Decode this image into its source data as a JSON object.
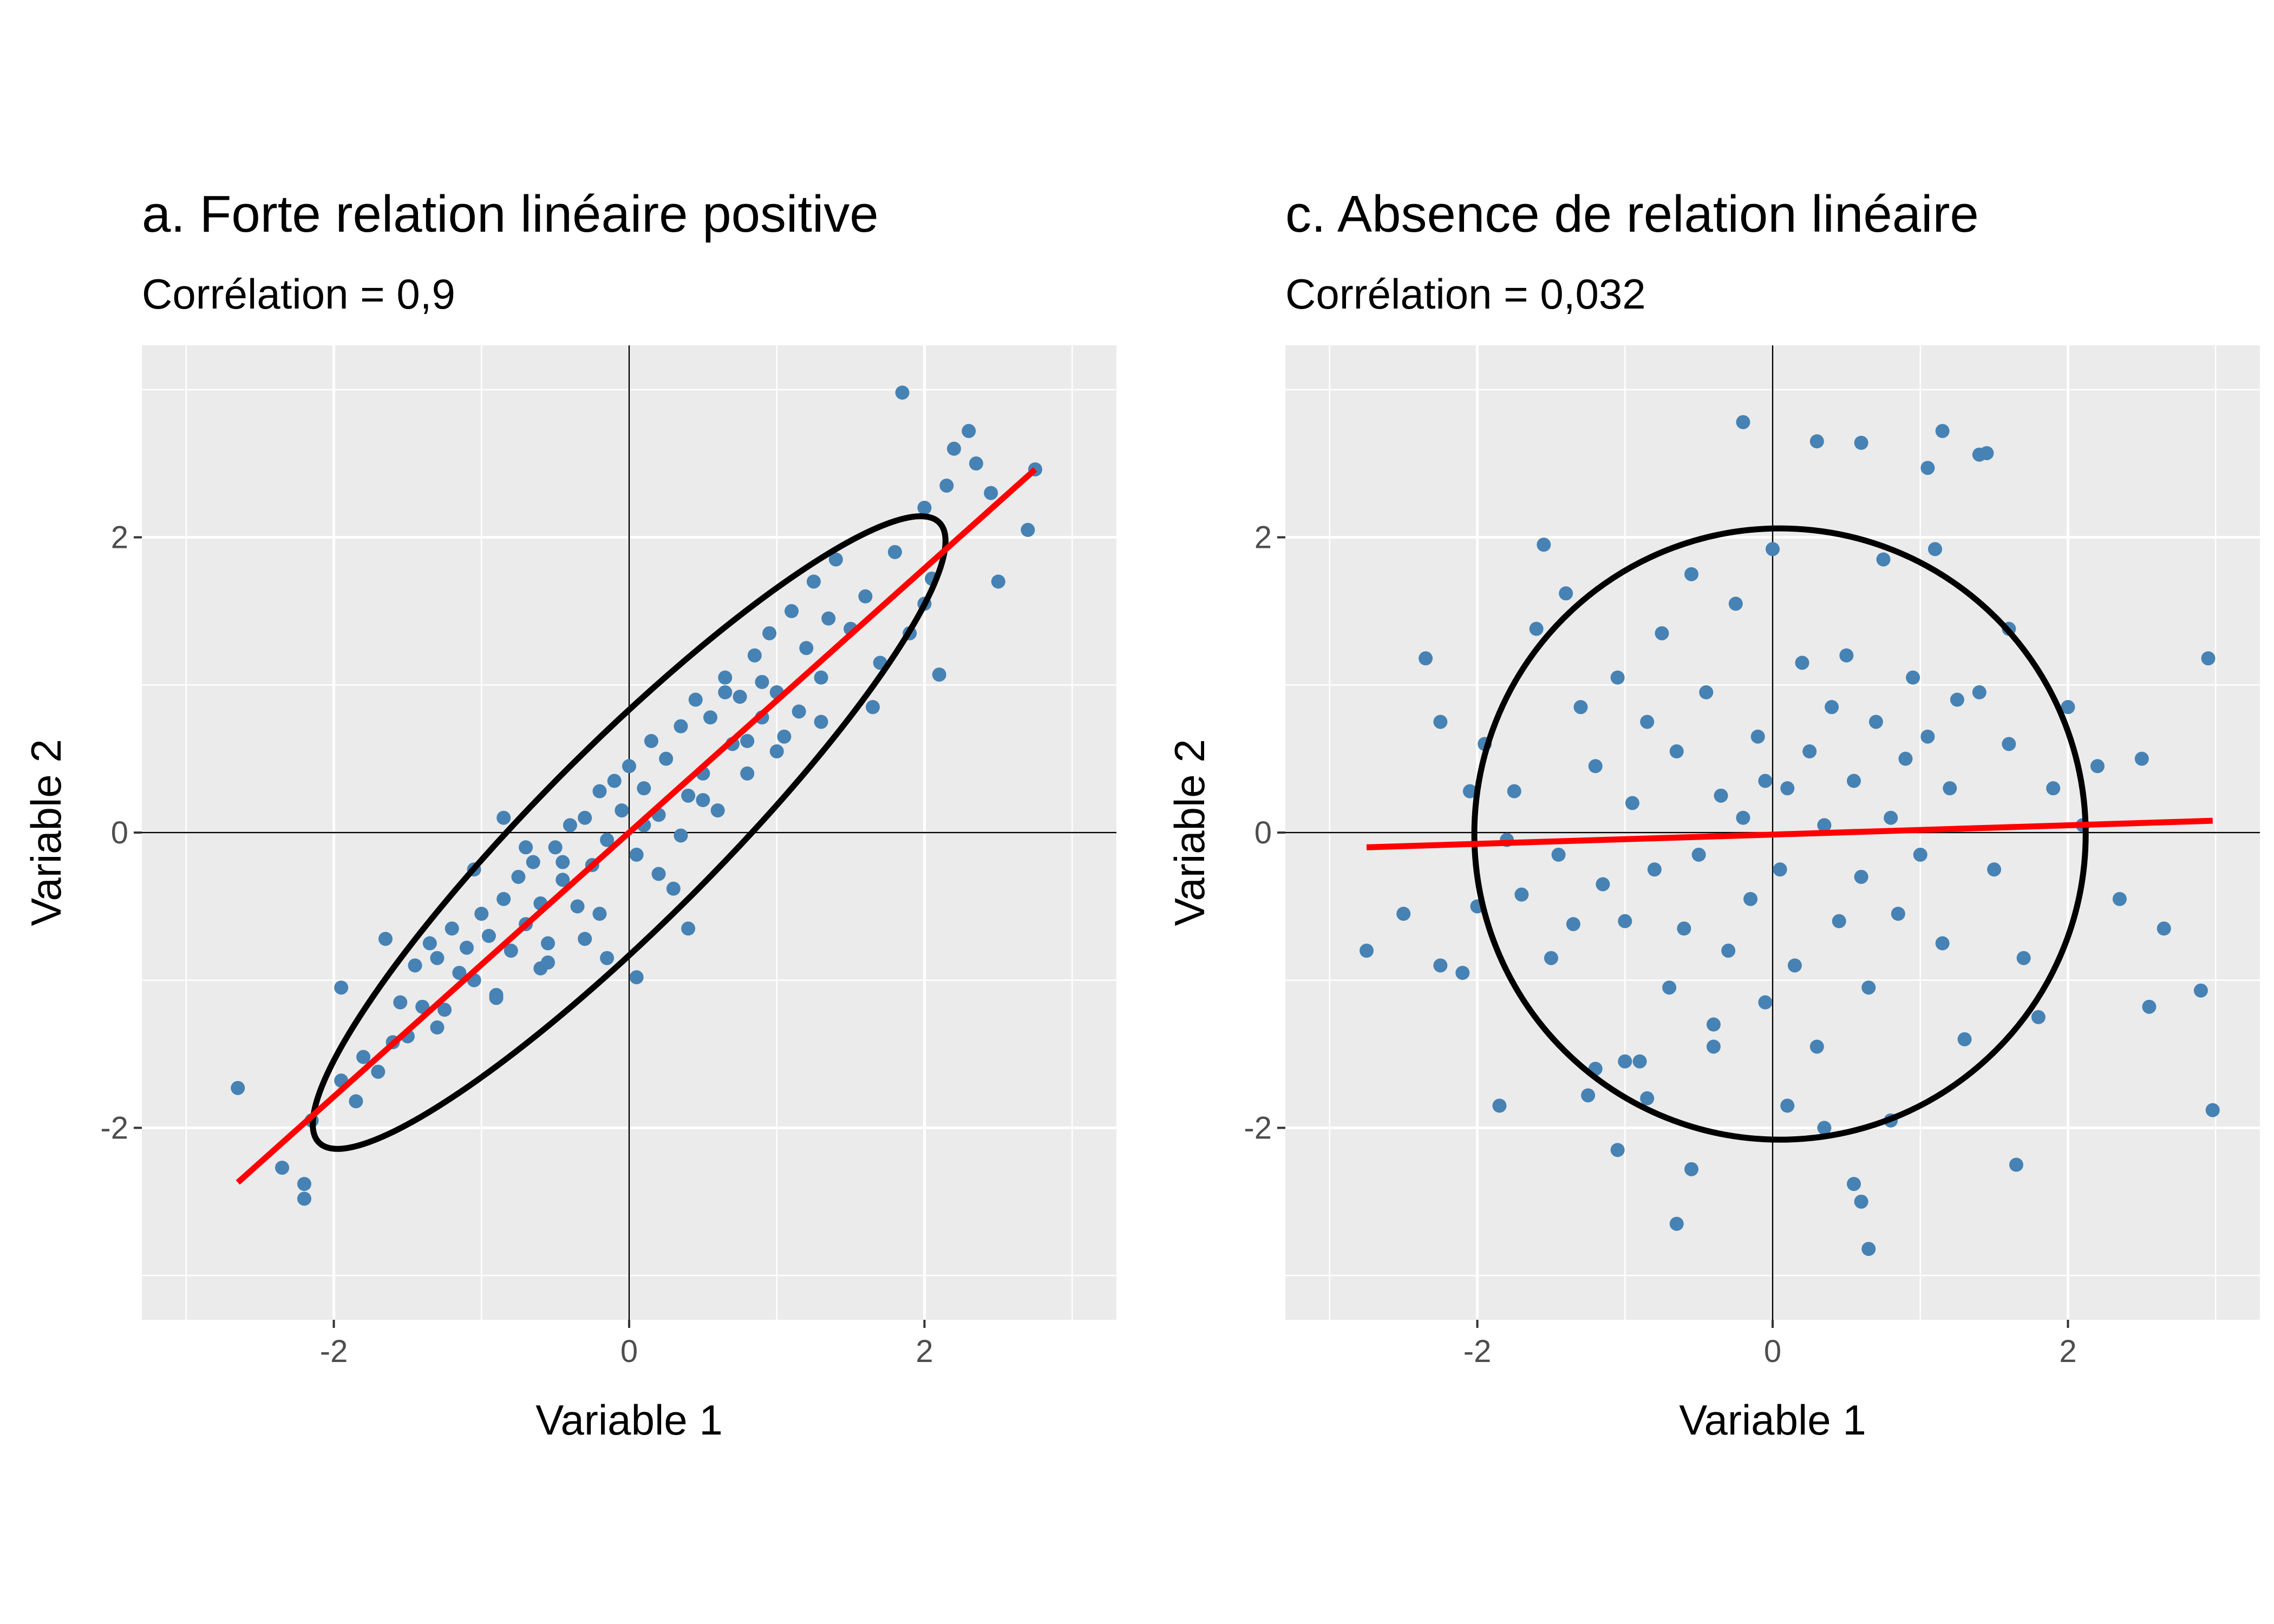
{
  "chart_data": [
    {
      "type": "scatter",
      "title": "a. Forte relation linéaire positive",
      "subtitle": "Corrélation = 0,9",
      "xlabel": "Variable 1",
      "ylabel": "Variable 2",
      "xlim": [
        -3.3,
        3.3
      ],
      "ylim": [
        -3.3,
        3.3
      ],
      "xticks": [
        -2,
        0,
        2
      ],
      "yticks": [
        -2,
        0,
        2
      ],
      "xtick_labels": [
        "-2",
        "0",
        "2"
      ],
      "ytick_labels": [
        "-2",
        "0",
        "2"
      ],
      "grid": true,
      "reference_lines": {
        "x": 0,
        "y": 0
      },
      "point_color": "#4682B4",
      "regression_line": {
        "color": "#FF0000",
        "x": [
          -2.65,
          2.75
        ],
        "y": [
          -2.37,
          2.46
        ]
      },
      "ellipse": {
        "color": "#000000",
        "center": [
          0,
          0
        ],
        "semi_major": 2.97,
        "semi_minor": 0.6,
        "angle_deg": 45
      },
      "points": {
        "x": [
          -2.65,
          -2.35,
          -2.2,
          -2.2,
          -2.15,
          -1.95,
          -1.85,
          -1.8,
          -1.7,
          -1.6,
          -1.55,
          -1.5,
          -1.45,
          -1.4,
          -1.35,
          -1.3,
          -1.25,
          -1.2,
          -1.15,
          -1.1,
          -1.05,
          -1.0,
          -0.95,
          -0.9,
          -0.85,
          -0.8,
          -0.75,
          -0.7,
          -0.65,
          -0.6,
          -0.55,
          -0.5,
          -0.45,
          -0.4,
          -0.35,
          -0.3,
          -0.25,
          -0.2,
          -0.15,
          -0.1,
          -0.05,
          0.0,
          0.05,
          0.1,
          0.15,
          0.2,
          0.25,
          0.3,
          0.35,
          0.4,
          0.45,
          0.5,
          0.55,
          0.6,
          0.65,
          0.7,
          0.75,
          0.8,
          0.85,
          0.9,
          0.95,
          1.0,
          1.05,
          1.1,
          1.15,
          1.2,
          1.25,
          1.3,
          1.35,
          1.4,
          1.5,
          1.6,
          1.7,
          1.8,
          1.85,
          1.9,
          2.0,
          2.05,
          2.1,
          2.15,
          2.2,
          2.3,
          2.35,
          2.45,
          2.5,
          2.7,
          2.75,
          -1.3,
          -0.9,
          -0.6,
          -0.2,
          0.35,
          0.8,
          -0.45,
          0.1,
          0.5,
          1.0,
          -1.05,
          -0.7,
          -0.3,
          0.2,
          0.65,
          -0.85,
          -0.15,
          0.4,
          0.9,
          1.3,
          0.05,
          -0.55,
          -1.65,
          -1.95,
          1.65,
          2.0
        ],
        "y": [
          -1.73,
          -2.27,
          -2.38,
          -2.48,
          -1.95,
          -1.68,
          -1.82,
          -1.52,
          -1.62,
          -1.42,
          -1.15,
          -1.38,
          -0.9,
          -1.18,
          -0.75,
          -0.85,
          -1.2,
          -0.65,
          -0.95,
          -0.78,
          -1.0,
          -0.55,
          -0.7,
          -1.12,
          -0.45,
          -0.8,
          -0.3,
          -0.62,
          -0.2,
          -0.48,
          -0.75,
          -0.1,
          -0.32,
          0.05,
          -0.5,
          0.1,
          -0.22,
          0.28,
          -0.05,
          0.35,
          0.15,
          0.45,
          -0.15,
          0.3,
          0.62,
          0.12,
          0.5,
          -0.38,
          0.72,
          0.25,
          0.9,
          0.4,
          0.78,
          0.15,
          1.05,
          0.6,
          0.92,
          0.4,
          1.2,
          0.78,
          1.35,
          0.95,
          0.65,
          1.5,
          0.82,
          1.25,
          1.7,
          1.05,
          1.45,
          1.85,
          1.38,
          1.6,
          1.15,
          1.9,
          2.98,
          1.35,
          2.2,
          1.72,
          1.07,
          2.35,
          2.6,
          2.72,
          2.5,
          2.3,
          1.7,
          2.05,
          2.46,
          -1.32,
          -1.1,
          -0.92,
          -0.55,
          -0.02,
          0.62,
          -0.2,
          0.05,
          0.22,
          0.55,
          -0.25,
          -0.1,
          -0.72,
          -0.28,
          0.95,
          0.1,
          -0.85,
          -0.65,
          1.02,
          0.75,
          -0.98,
          -0.88,
          -0.72,
          -1.05,
          0.85,
          1.55
        ]
      }
    },
    {
      "type": "scatter",
      "title": "c. Absence de relation linéaire",
      "subtitle": "Corrélation = 0,032",
      "xlabel": "Variable 1",
      "ylabel": "Variable 2",
      "xlim": [
        -3.3,
        3.3
      ],
      "ylim": [
        -3.3,
        3.3
      ],
      "xticks": [
        -2,
        0,
        2
      ],
      "yticks": [
        -2,
        0,
        2
      ],
      "xtick_labels": [
        "-2",
        "0",
        "2"
      ],
      "ytick_labels": [
        "-2",
        "0",
        "2"
      ],
      "grid": true,
      "reference_lines": {
        "x": 0,
        "y": 0
      },
      "point_color": "#4682B4",
      "regression_line": {
        "color": "#FF0000",
        "x": [
          -2.75,
          2.98
        ],
        "y": [
          -0.1,
          0.08
        ]
      },
      "ellipse": {
        "color": "#000000",
        "center": [
          0.05,
          -0.01
        ],
        "semi_major": 2.07,
        "semi_minor": 2.07,
        "angle_deg": 0
      },
      "points": {
        "x": [
          -2.75,
          -2.5,
          -2.35,
          -2.25,
          -2.25,
          -2.1,
          -2.05,
          -2.0,
          -1.95,
          -1.85,
          -1.8,
          -1.75,
          -1.7,
          -1.6,
          -1.55,
          -1.5,
          -1.45,
          -1.4,
          -1.35,
          -1.3,
          -1.25,
          -1.2,
          -1.15,
          -1.05,
          -1.05,
          -1.0,
          -0.95,
          -0.9,
          -0.85,
          -0.8,
          -0.75,
          -0.7,
          -0.65,
          -0.6,
          -0.55,
          -0.5,
          -0.45,
          -0.4,
          -0.35,
          -0.3,
          -0.25,
          -0.2,
          -0.15,
          -0.1,
          -0.05,
          0.0,
          0.05,
          0.1,
          0.15,
          0.2,
          0.25,
          0.3,
          0.35,
          0.4,
          0.45,
          0.5,
          0.55,
          0.6,
          0.65,
          0.7,
          0.75,
          0.8,
          0.85,
          0.9,
          0.95,
          1.0,
          1.05,
          1.1,
          1.15,
          1.2,
          1.3,
          1.4,
          1.5,
          1.6,
          1.65,
          1.7,
          1.8,
          1.9,
          2.0,
          2.1,
          2.2,
          2.35,
          2.5,
          2.55,
          2.65,
          2.9,
          2.95,
          2.98,
          -0.2,
          0.3,
          0.6,
          1.05,
          1.15,
          1.4,
          1.45,
          -0.65,
          -0.55,
          0.55,
          0.6,
          0.65,
          -1.0,
          1.6,
          0.1,
          -0.4,
          0.8,
          -1.2,
          -0.85,
          0.35,
          1.25,
          -0.05
        ],
        "y": [
          -0.8,
          -0.55,
          1.18,
          -0.9,
          0.75,
          -0.95,
          0.28,
          -0.5,
          0.6,
          -1.85,
          -0.05,
          0.28,
          -0.42,
          1.38,
          1.95,
          -0.85,
          -0.15,
          1.62,
          -0.62,
          0.85,
          -1.78,
          0.45,
          -0.35,
          -2.15,
          1.05,
          -0.6,
          0.2,
          -1.55,
          0.75,
          -0.25,
          1.35,
          -1.05,
          0.55,
          -0.65,
          1.75,
          -0.15,
          0.95,
          -1.3,
          0.25,
          -0.8,
          1.55,
          0.1,
          -0.45,
          0.65,
          -1.15,
          1.92,
          -0.25,
          0.3,
          -0.9,
          1.15,
          0.55,
          -1.45,
          0.05,
          0.85,
          -0.6,
          1.2,
          0.35,
          -0.3,
          -1.05,
          0.75,
          1.85,
          0.1,
          -0.55,
          0.5,
          1.05,
          -0.15,
          0.65,
          1.92,
          -0.75,
          0.3,
          -1.4,
          0.95,
          -0.25,
          0.6,
          -2.25,
          -0.85,
          -1.25,
          0.3,
          0.85,
          0.05,
          0.45,
          -0.45,
          0.5,
          -1.18,
          -0.65,
          -1.07,
          1.18,
          -1.88,
          2.78,
          2.65,
          2.64,
          2.47,
          2.72,
          2.56,
          2.57,
          -2.65,
          -2.28,
          -2.38,
          -2.5,
          -2.82,
          -1.55,
          1.38,
          -1.85,
          -1.45,
          -1.95,
          -1.6,
          -1.8,
          -2.0,
          0.9,
          0.35
        ]
      }
    }
  ]
}
